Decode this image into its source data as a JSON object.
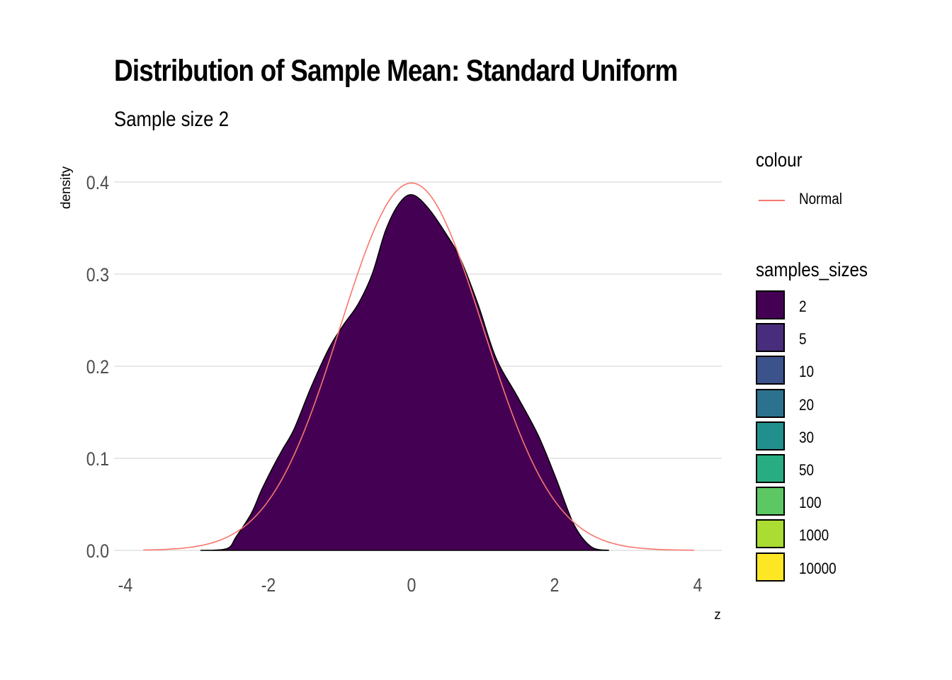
{
  "title": "Distribution of Sample Mean: Standard Uniform",
  "subtitle": "Sample size 2",
  "axes": {
    "x": {
      "label": "z",
      "ticks": [
        "-4",
        "-2",
        "0",
        "2",
        "4"
      ]
    },
    "y": {
      "label": "density",
      "ticks": [
        "0.0",
        "0.1",
        "0.2",
        "0.3",
        "0.4"
      ]
    }
  },
  "legend": {
    "colour": {
      "title": "colour",
      "items": [
        {
          "label": "Normal",
          "color": "#F8766D"
        }
      ]
    },
    "samples_sizes": {
      "title": "samples_sizes",
      "items": [
        {
          "label": "2",
          "color": "#440154"
        },
        {
          "label": "5",
          "color": "#472D7B"
        },
        {
          "label": "10",
          "color": "#3B528B"
        },
        {
          "label": "20",
          "color": "#2C728E"
        },
        {
          "label": "30",
          "color": "#21908C"
        },
        {
          "label": "50",
          "color": "#27AD81"
        },
        {
          "label": "100",
          "color": "#5DC863"
        },
        {
          "label": "1000",
          "color": "#AADC32"
        },
        {
          "label": "10000",
          "color": "#FDE725"
        }
      ]
    }
  },
  "chart_data": {
    "type": "area",
    "title": "Distribution of Sample Mean: Standard Uniform",
    "subtitle": "Sample size 2",
    "xlabel": "z",
    "ylabel": "density",
    "xlim": [
      -4.2,
      4.3
    ],
    "ylim": [
      0,
      0.42
    ],
    "grid": true,
    "legend_position": "right",
    "series": [
      {
        "name": "samples_sizes = 2 (density)",
        "type": "area",
        "color": "#440154",
        "x": [
          -2.95,
          -2.58,
          -2.45,
          -2.24,
          -2.1,
          -1.94,
          -1.8,
          -1.64,
          -1.4,
          -1.15,
          -0.95,
          -0.75,
          -0.55,
          -0.36,
          -0.16,
          0.02,
          0.24,
          0.48,
          0.68,
          0.93,
          1.18,
          1.48,
          1.77,
          2.02,
          2.27,
          2.51,
          2.76
        ],
        "y": [
          0.0,
          0.002,
          0.015,
          0.04,
          0.065,
          0.09,
          0.11,
          0.132,
          0.178,
          0.22,
          0.245,
          0.267,
          0.3,
          0.348,
          0.378,
          0.386,
          0.371,
          0.344,
          0.317,
          0.267,
          0.209,
          0.167,
          0.125,
          0.078,
          0.028,
          0.004,
          0.0
        ]
      },
      {
        "name": "Normal",
        "type": "line",
        "color": "#F8766D",
        "function": "standard normal pdf",
        "x_range": [
          -3.75,
          3.95
        ]
      }
    ]
  }
}
